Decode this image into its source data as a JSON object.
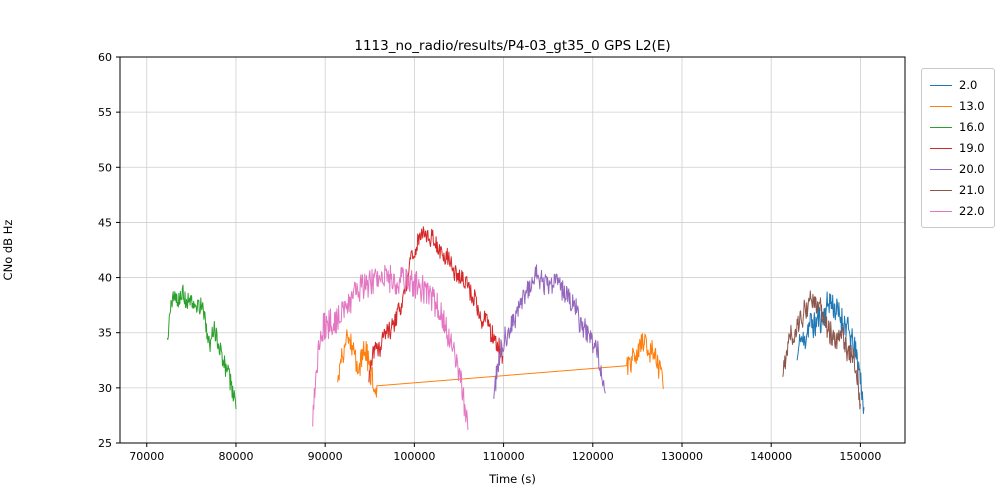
{
  "chart_data": {
    "type": "line",
    "title": "1113_no_radio/results/P4-03_gt35_0 GPS L2(E)",
    "xlabel": "Time (s)",
    "ylabel": "CNo dB Hz",
    "xlim": [
      67000,
      155000
    ],
    "ylim": [
      25,
      60
    ],
    "xticks": [
      70000,
      80000,
      90000,
      100000,
      110000,
      120000,
      130000,
      140000,
      150000
    ],
    "yticks": [
      25,
      30,
      35,
      40,
      45,
      50,
      55,
      60
    ],
    "grid": true,
    "legend_position": "outside right",
    "series": [
      {
        "name": "2.0",
        "color": "#1f77b4",
        "noise": 1.3,
        "points": [
          [
            142900,
            32.5
          ],
          [
            143300,
            34.5
          ],
          [
            143700,
            34
          ],
          [
            144100,
            35.5
          ],
          [
            144500,
            36
          ],
          [
            144900,
            35.5
          ],
          [
            145300,
            36.5
          ],
          [
            145700,
            36
          ],
          [
            146100,
            37
          ],
          [
            146500,
            38
          ],
          [
            146900,
            37.5
          ],
          [
            147300,
            37
          ],
          [
            147700,
            36.5
          ],
          [
            148100,
            36
          ],
          [
            148500,
            35.5
          ],
          [
            148900,
            34.5
          ],
          [
            149300,
            33.5
          ],
          [
            149700,
            32.5
          ],
          [
            150100,
            30.5
          ],
          [
            150400,
            28
          ]
        ]
      },
      {
        "name": "13.0",
        "color": "#ff7f0e",
        "noise": 1.1,
        "points": [
          [
            91400,
            30.5
          ],
          [
            91800,
            32.5
          ],
          [
            92200,
            34
          ],
          [
            92600,
            34.5
          ],
          [
            93000,
            33.5
          ],
          [
            93400,
            32.5
          ],
          [
            93800,
            31.5
          ],
          [
            94200,
            33
          ],
          [
            94600,
            33.5
          ],
          [
            95000,
            31.5
          ],
          [
            95400,
            30.5
          ],
          [
            95800,
            29.8
          ],
          [
            123800,
            32
          ],
          [
            124300,
            32.5
          ],
          [
            124700,
            33.5
          ],
          [
            125100,
            33
          ],
          [
            125500,
            34
          ],
          [
            125900,
            34.5
          ],
          [
            126300,
            33
          ],
          [
            126700,
            33.5
          ],
          [
            127100,
            32.5
          ],
          [
            127500,
            31.5
          ],
          [
            127900,
            30
          ]
        ]
      },
      {
        "name": "16.0",
        "color": "#2ca02c",
        "noise": 0.9,
        "points": [
          [
            72300,
            34.5
          ],
          [
            72600,
            37
          ],
          [
            72900,
            38
          ],
          [
            73200,
            38.5
          ],
          [
            73600,
            38
          ],
          [
            74000,
            38.5
          ],
          [
            74400,
            38
          ],
          [
            74800,
            37.5
          ],
          [
            75200,
            38
          ],
          [
            75600,
            37.5
          ],
          [
            76000,
            37.5
          ],
          [
            76400,
            37
          ],
          [
            76800,
            35
          ],
          [
            77100,
            34
          ],
          [
            77400,
            35.5
          ],
          [
            77800,
            35
          ],
          [
            78200,
            33.5
          ],
          [
            78600,
            32.5
          ],
          [
            79000,
            31.5
          ],
          [
            79400,
            30.5
          ],
          [
            79800,
            29
          ],
          [
            80000,
            28
          ]
        ]
      },
      {
        "name": "19.0",
        "color": "#d62728",
        "noise": 0.9,
        "points": [
          [
            94900,
            30.5
          ],
          [
            95300,
            33
          ],
          [
            95700,
            34
          ],
          [
            96100,
            33.5
          ],
          [
            96500,
            34.5
          ],
          [
            97000,
            35
          ],
          [
            97500,
            35.5
          ],
          [
            98000,
            36.5
          ],
          [
            98500,
            37.5
          ],
          [
            99000,
            39
          ],
          [
            99500,
            41
          ],
          [
            100000,
            42.5
          ],
          [
            100500,
            43.5
          ],
          [
            101000,
            44
          ],
          [
            101500,
            43.8
          ],
          [
            102000,
            43.5
          ],
          [
            102500,
            43
          ],
          [
            103000,
            42.5
          ],
          [
            103500,
            42
          ],
          [
            104000,
            41.5
          ],
          [
            104500,
            40.5
          ],
          [
            105000,
            40.2
          ],
          [
            105500,
            39.8
          ],
          [
            106000,
            39
          ],
          [
            106500,
            38.5
          ],
          [
            107000,
            37.5
          ],
          [
            107500,
            36
          ],
          [
            108000,
            36.5
          ],
          [
            108500,
            35
          ],
          [
            109000,
            34.5
          ],
          [
            109500,
            33.8
          ],
          [
            109900,
            33
          ]
        ]
      },
      {
        "name": "20.0",
        "color": "#9467bd",
        "noise": 1.0,
        "points": [
          [
            108900,
            29
          ],
          [
            109300,
            32
          ],
          [
            109700,
            33.5
          ],
          [
            110100,
            34.5
          ],
          [
            110500,
            35
          ],
          [
            111000,
            36
          ],
          [
            111500,
            36.5
          ],
          [
            112000,
            37.5
          ],
          [
            112500,
            38.5
          ],
          [
            113000,
            39.5
          ],
          [
            113500,
            40.5
          ],
          [
            114000,
            40
          ],
          [
            114500,
            39.5
          ],
          [
            115000,
            39
          ],
          [
            115500,
            39.5
          ],
          [
            116000,
            39.5
          ],
          [
            116500,
            39
          ],
          [
            117000,
            38.5
          ],
          [
            117500,
            38
          ],
          [
            118000,
            37.5
          ],
          [
            118500,
            36
          ],
          [
            119000,
            35.5
          ],
          [
            119500,
            35
          ],
          [
            120000,
            34
          ],
          [
            120500,
            33.5
          ],
          [
            121000,
            31.5
          ],
          [
            121400,
            29.5
          ]
        ]
      },
      {
        "name": "21.0",
        "color": "#8c564b",
        "noise": 1.1,
        "points": [
          [
            141300,
            31
          ],
          [
            141700,
            33.5
          ],
          [
            142100,
            35
          ],
          [
            142500,
            34.5
          ],
          [
            142900,
            35.5
          ],
          [
            143300,
            36
          ],
          [
            143700,
            37
          ],
          [
            144100,
            37.5
          ],
          [
            144500,
            38
          ],
          [
            144900,
            37.5
          ],
          [
            145300,
            37.8
          ],
          [
            145700,
            36.5
          ],
          [
            146100,
            35.5
          ],
          [
            146500,
            35
          ],
          [
            146900,
            34.8
          ],
          [
            147300,
            34.5
          ],
          [
            147700,
            35
          ],
          [
            148100,
            34.5
          ],
          [
            148500,
            33.5
          ],
          [
            148900,
            33
          ],
          [
            149300,
            32.5
          ],
          [
            149700,
            31
          ],
          [
            150000,
            28.5
          ]
        ]
      },
      {
        "name": "22.0",
        "color": "#e377c2",
        "noise": 1.3,
        "points": [
          [
            88600,
            26.5
          ],
          [
            88900,
            30.5
          ],
          [
            89200,
            33
          ],
          [
            89500,
            34.5
          ],
          [
            89800,
            35.5
          ],
          [
            90200,
            35.5
          ],
          [
            90600,
            36
          ],
          [
            91000,
            36
          ],
          [
            91500,
            36.5
          ],
          [
            92000,
            37
          ],
          [
            92500,
            37.5
          ],
          [
            93000,
            38
          ],
          [
            93500,
            38.5
          ],
          [
            94000,
            39
          ],
          [
            94500,
            39.5
          ],
          [
            95000,
            39.5
          ],
          [
            95500,
            39.8
          ],
          [
            96000,
            40
          ],
          [
            96500,
            39.8
          ],
          [
            97000,
            40
          ],
          [
            97500,
            39.8
          ],
          [
            98000,
            39.5
          ],
          [
            98500,
            39.8
          ],
          [
            99000,
            40
          ],
          [
            99500,
            39.5
          ],
          [
            100000,
            39.5
          ],
          [
            100500,
            39.2
          ],
          [
            101000,
            39
          ],
          [
            101500,
            38.5
          ],
          [
            102000,
            38
          ],
          [
            102500,
            37.5
          ],
          [
            103000,
            36.5
          ],
          [
            103500,
            35.5
          ],
          [
            104000,
            34
          ],
          [
            104500,
            33
          ],
          [
            105000,
            31.5
          ],
          [
            105400,
            29.5
          ],
          [
            105700,
            28
          ],
          [
            106000,
            26.5
          ]
        ]
      }
    ]
  }
}
